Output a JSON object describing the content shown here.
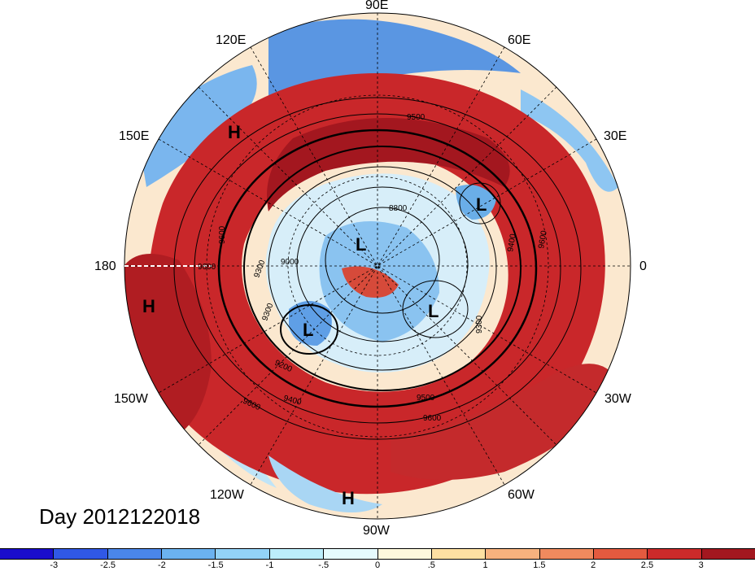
{
  "lon_labels": {
    "e90": "90E",
    "e120": "120E",
    "e60": "60E",
    "e150": "150E",
    "e30": "30E",
    "w180": "180",
    "zero": "0",
    "w150": "150W",
    "w30": "30W",
    "w120": "120W",
    "w60": "60W",
    "w90": "90W"
  },
  "pressure_systems": [
    {
      "type": "H",
      "id": "h1"
    },
    {
      "type": "H",
      "id": "h2"
    },
    {
      "type": "H",
      "id": "h3"
    },
    {
      "type": "L",
      "id": "l1"
    },
    {
      "type": "L",
      "id": "l2"
    },
    {
      "type": "L",
      "id": "l3"
    },
    {
      "type": "L",
      "id": "l4"
    }
  ],
  "sym_H": "H",
  "sym_L": "L",
  "contour_labels": {
    "c9500a": "9500",
    "c8800": "8800",
    "c9600a": "9600",
    "c9600b": "9600",
    "c9300a": "9300",
    "c9300b": "9300",
    "c9300c": "9300",
    "c9200": "9200",
    "c9400": "9400",
    "c9500b": "9500",
    "c9600c": "9600",
    "c9600d": "9600",
    "c9600e": "9600",
    "c9000": "9000",
    "c9400b": "9400"
  },
  "day_label": "Day 2012122018",
  "colorbar": {
    "colors": [
      "#1a0dcc",
      "#3058e6",
      "#4a86ea",
      "#6bb2f0",
      "#93d2f7",
      "#bceefb",
      "#e6fbfd",
      "#fdf8dc",
      "#fde0a2",
      "#f7b27e",
      "#f08a5e",
      "#e45a3f",
      "#cc2a2a",
      "#a3171f"
    ],
    "ticks": [
      "-3",
      "-2.5",
      "-2",
      "-1.5",
      "-1",
      "-.5",
      "0",
      ".5",
      "1",
      "1.5",
      "2",
      "2.5",
      "3"
    ]
  },
  "colors": {
    "warm_strong": "#a8171e",
    "warm_mid": "#d9412e",
    "warm_light": "#f4a07a",
    "neutral": "#fdf3df",
    "cool_light": "#bfe4f7",
    "cool_mid": "#6aaee8",
    "cool_strong": "#2f5fd6"
  }
}
